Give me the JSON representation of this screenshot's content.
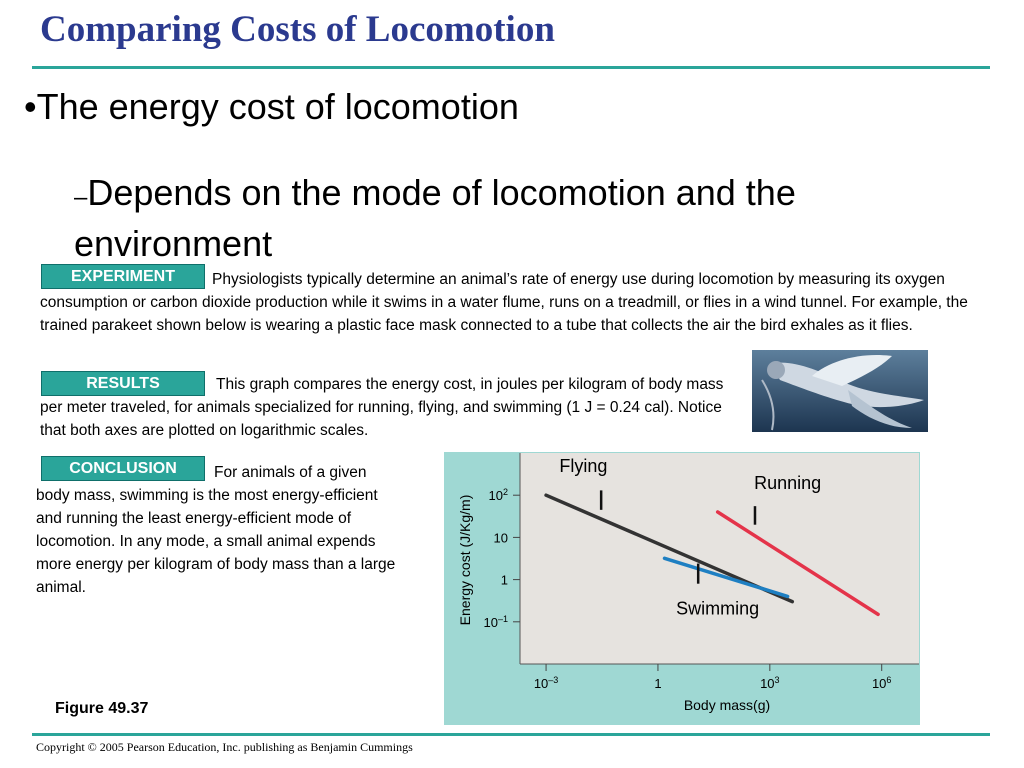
{
  "slide": {
    "title": "Comparing Costs of Locomotion",
    "bullet": "•The energy cost of locomotion",
    "sub_dash": "–",
    "sub_text": "Depends on the mode of locomotion and the environment",
    "experiment_label": "EXPERIMENT",
    "experiment_text": "Physiologists typically determine an animal’s rate of energy use during locomotion by measuring its oxygen consumption or carbon dioxide production while it swims in a water flume, runs on a treadmill, or flies in a wind tunnel. For example, the trained parakeet shown below is wearing a plastic face mask connected to a tube that collects the air the bird exhales as it flies.",
    "results_label": "RESULTS",
    "results_text": "This graph compares the energy cost, in joules per kilogram of body mass per meter traveled, for animals specialized for running, flying, and swimming (1 J = 0.24 cal). Notice that both axes are plotted on logarithmic scales.",
    "conclusion_label": "CONCLUSION",
    "conclusion_text": "For animals of a given body mass, swimming is the most energy-efficient and running the least energy-efficient mode of locomotion. In any mode, a small animal expends more energy per kilogram of body mass than a large animal.",
    "figure_label": "Figure 49.37",
    "copyright": "Copyright © 2005 Pearson Education, Inc. publishing as Benjamin Cummings",
    "colors": {
      "title": "#2b3a8f",
      "accent": "#2aa59a",
      "chart_bg": "#9fd8d3",
      "plot_bg": "#e6e3df"
    }
  },
  "chart_data": {
    "type": "line",
    "xlabel": "Body mass(g)",
    "ylabel": "Energy cost (J/Kg/m)",
    "x_scale": "log",
    "y_scale": "log",
    "xlim": [
      0.0002,
      10000000
    ],
    "ylim": [
      0.01,
      1000
    ],
    "x_ticks": [
      {
        "value": 0.001,
        "base": "10",
        "exp": "–3"
      },
      {
        "value": 1,
        "base": "1",
        "exp": ""
      },
      {
        "value": 1000,
        "base": "10",
        "exp": "3"
      },
      {
        "value": 1000000,
        "base": "10",
        "exp": "6"
      }
    ],
    "y_ticks": [
      {
        "value": 100,
        "base": "10",
        "exp": "2"
      },
      {
        "value": 10,
        "base": "10",
        "exp": ""
      },
      {
        "value": 1,
        "base": "1",
        "exp": ""
      },
      {
        "value": 0.1,
        "base": "10",
        "exp": "–1"
      }
    ],
    "series": [
      {
        "name": "Flying",
        "color": "#333333",
        "x": [
          0.001,
          4000
        ],
        "y": [
          100,
          0.3
        ],
        "label_x": 0.01,
        "label_y": 350,
        "tick_x": 0.03,
        "tick_y_top": 130,
        "tick_y_bottom": 45
      },
      {
        "name": "Running",
        "color": "#e4344a",
        "x": [
          40,
          800000
        ],
        "y": [
          40,
          0.15
        ],
        "label_x": 3000,
        "label_y": 140,
        "tick_x": 400,
        "tick_y_top": 55,
        "tick_y_bottom": 20
      },
      {
        "name": "Swimming",
        "color": "#1e7fc2",
        "x": [
          1.5,
          3000
        ],
        "y": [
          3.2,
          0.4
        ],
        "label_x": 40,
        "label_y": 0.15,
        "tick_x": 12,
        "tick_y_top": 2.4,
        "tick_y_bottom": 0.8
      }
    ],
    "grid": false,
    "legend": "inline labels"
  }
}
